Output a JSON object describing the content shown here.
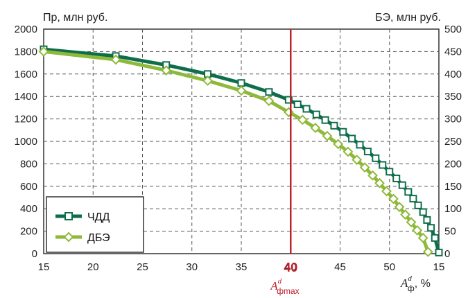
{
  "chart_data": {
    "type": "line",
    "ylabel_left": "Пр, млн руб.",
    "ylabel_right": "БЭ, млн руб.",
    "x_ticks": [
      "15",
      "20",
      "25",
      "30",
      "35",
      "40",
      "45",
      "50",
      "15"
    ],
    "x_range": [
      15,
      55
    ],
    "y_left_ticks": [
      0,
      200,
      400,
      600,
      800,
      1000,
      1200,
      1400,
      1600,
      1800,
      2000
    ],
    "y_left_range": [
      0,
      2000
    ],
    "y_right_ticks": [
      0,
      50,
      100,
      150,
      200,
      250,
      300,
      350,
      400,
      450,
      500
    ],
    "y_right_range": [
      0,
      500
    ],
    "grid": true,
    "legend_position": "bottom-left",
    "vline": {
      "x": 40,
      "label": "40",
      "symbol": "A",
      "symbol_sup": "d",
      "symbol_sub": "фmax"
    },
    "xlabel": {
      "symbol": "A",
      "symbol_sup": "d",
      "symbol_sub": "ф",
      "unit": ", %"
    },
    "series": [
      {
        "name": "ЧДД",
        "axis": "left",
        "color": "#0e6e4a",
        "marker": "square",
        "x": [
          15,
          22.3,
          27.4,
          31.6,
          35,
          37.8,
          39.8,
          40.7,
          41.6,
          42.6,
          43.5,
          44.4,
          45.3,
          46.2,
          47,
          47.8,
          48.6,
          49.3,
          50,
          50.7,
          51.3,
          51.9,
          52.4,
          52.9,
          53.4,
          53.8,
          54.2,
          54.6,
          55
        ],
        "values": [
          1820,
          1760,
          1680,
          1600,
          1520,
          1440,
          1370,
          1330,
          1290,
          1240,
          1190,
          1140,
          1085,
          1025,
          970,
          910,
          850,
          790,
          730,
          670,
          610,
          550,
          490,
          430,
          370,
          300,
          230,
          140,
          10
        ]
      },
      {
        "name": "ДБЭ",
        "axis": "right",
        "color": "#8fb93a",
        "marker": "diamond",
        "x": [
          15,
          22.3,
          27.4,
          31.6,
          35,
          37.8,
          39.8,
          41.2,
          42.5,
          43.7,
          44.8,
          45.8,
          46.7,
          47.5,
          48.3,
          49,
          49.7,
          50.4,
          51,
          51.6,
          52.2,
          52.8,
          53.4,
          53.9
        ],
        "values": [
          450,
          432,
          408,
          385,
          363,
          340,
          315,
          298,
          280,
          262,
          244,
          227,
          209,
          192,
          174,
          157,
          139,
          122,
          104,
          87,
          70,
          52,
          35,
          4
        ]
      }
    ]
  }
}
